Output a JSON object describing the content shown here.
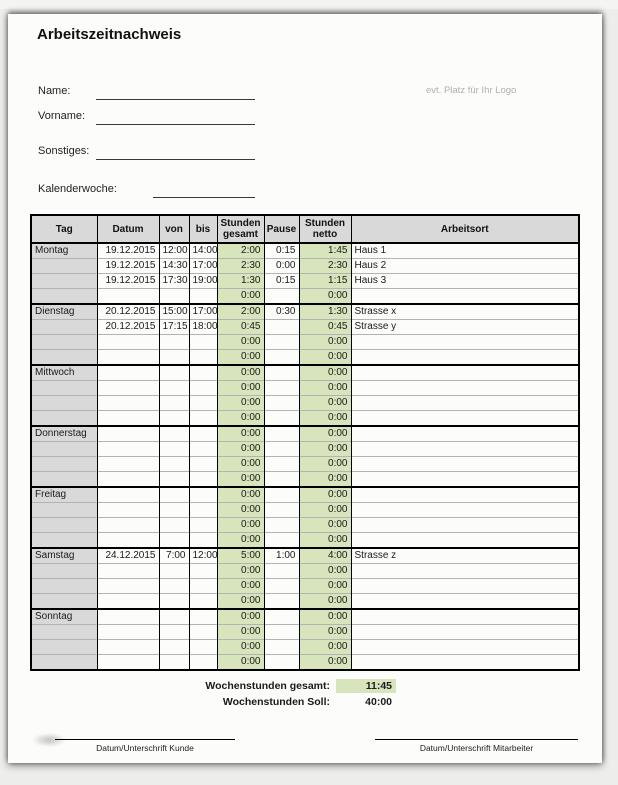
{
  "page": {
    "title": "Arbeitszeitnachweis",
    "logo_placeholder": "evt. Platz für Ihr Logo"
  },
  "colors": {
    "cell_green": "#d8e4bc",
    "header_gray": "#d9d9d9"
  },
  "form": {
    "name_label": "Name:",
    "vorname_label": "Vorname:",
    "sonstiges_label": "Sonstiges:",
    "kalenderwoche_label": "Kalenderwoche:"
  },
  "table": {
    "columns": [
      "Tag",
      "Datum",
      "von",
      "bis",
      "Stunden gesamt",
      "Pause",
      "Stunden netto",
      "Arbeitsort"
    ],
    "days": [
      {
        "name": "Montag",
        "rows": [
          {
            "datum": "19.12.2015",
            "von": "12:00",
            "bis": "14:00",
            "gesamt": "2:00",
            "pause": "0:15",
            "netto": "1:45",
            "ort": "Haus 1"
          },
          {
            "datum": "19.12.2015",
            "von": "14:30",
            "bis": "17:00",
            "gesamt": "2:30",
            "pause": "0:00",
            "netto": "2:30",
            "ort": "Haus 2"
          },
          {
            "datum": "19.12.2015",
            "von": "17:30",
            "bis": "19:00",
            "gesamt": "1:30",
            "pause": "0:15",
            "netto": "1:15",
            "ort": "Haus 3"
          },
          {
            "datum": "",
            "von": "",
            "bis": "",
            "gesamt": "0:00",
            "pause": "",
            "netto": "0:00",
            "ort": ""
          }
        ]
      },
      {
        "name": "Dienstag",
        "rows": [
          {
            "datum": "20.12.2015",
            "von": "15:00",
            "bis": "17:00",
            "gesamt": "2:00",
            "pause": "0:30",
            "netto": "1:30",
            "ort": "Strasse x"
          },
          {
            "datum": "20.12.2015",
            "von": "17:15",
            "bis": "18:00",
            "gesamt": "0:45",
            "pause": "",
            "netto": "0:45",
            "ort": "Strasse y"
          },
          {
            "datum": "",
            "von": "",
            "bis": "",
            "gesamt": "0:00",
            "pause": "",
            "netto": "0:00",
            "ort": ""
          },
          {
            "datum": "",
            "von": "",
            "bis": "",
            "gesamt": "0:00",
            "pause": "",
            "netto": "0:00",
            "ort": ""
          }
        ]
      },
      {
        "name": "Mittwoch",
        "rows": [
          {
            "datum": "",
            "von": "",
            "bis": "",
            "gesamt": "0:00",
            "pause": "",
            "netto": "0:00",
            "ort": ""
          },
          {
            "datum": "",
            "von": "",
            "bis": "",
            "gesamt": "0:00",
            "pause": "",
            "netto": "0:00",
            "ort": ""
          },
          {
            "datum": "",
            "von": "",
            "bis": "",
            "gesamt": "0:00",
            "pause": "",
            "netto": "0:00",
            "ort": ""
          },
          {
            "datum": "",
            "von": "",
            "bis": "",
            "gesamt": "0:00",
            "pause": "",
            "netto": "0:00",
            "ort": ""
          }
        ]
      },
      {
        "name": "Donnerstag",
        "rows": [
          {
            "datum": "",
            "von": "",
            "bis": "",
            "gesamt": "0:00",
            "pause": "",
            "netto": "0:00",
            "ort": ""
          },
          {
            "datum": "",
            "von": "",
            "bis": "",
            "gesamt": "0:00",
            "pause": "",
            "netto": "0:00",
            "ort": ""
          },
          {
            "datum": "",
            "von": "",
            "bis": "",
            "gesamt": "0:00",
            "pause": "",
            "netto": "0:00",
            "ort": ""
          },
          {
            "datum": "",
            "von": "",
            "bis": "",
            "gesamt": "0:00",
            "pause": "",
            "netto": "0:00",
            "ort": ""
          }
        ]
      },
      {
        "name": "Freitag",
        "rows": [
          {
            "datum": "",
            "von": "",
            "bis": "",
            "gesamt": "0:00",
            "pause": "",
            "netto": "0:00",
            "ort": ""
          },
          {
            "datum": "",
            "von": "",
            "bis": "",
            "gesamt": "0:00",
            "pause": "",
            "netto": "0:00",
            "ort": ""
          },
          {
            "datum": "",
            "von": "",
            "bis": "",
            "gesamt": "0:00",
            "pause": "",
            "netto": "0:00",
            "ort": ""
          },
          {
            "datum": "",
            "von": "",
            "bis": "",
            "gesamt": "0:00",
            "pause": "",
            "netto": "0:00",
            "ort": ""
          }
        ]
      },
      {
        "name": "Samstag",
        "rows": [
          {
            "datum": "24.12.2015",
            "von": "7:00",
            "bis": "12:00",
            "gesamt": "5:00",
            "pause": "1:00",
            "netto": "4:00",
            "ort": "Strasse z"
          },
          {
            "datum": "",
            "von": "",
            "bis": "",
            "gesamt": "0:00",
            "pause": "",
            "netto": "0:00",
            "ort": ""
          },
          {
            "datum": "",
            "von": "",
            "bis": "",
            "gesamt": "0:00",
            "pause": "",
            "netto": "0:00",
            "ort": ""
          },
          {
            "datum": "",
            "von": "",
            "bis": "",
            "gesamt": "0:00",
            "pause": "",
            "netto": "0:00",
            "ort": ""
          }
        ]
      },
      {
        "name": "Sonntag",
        "rows": [
          {
            "datum": "",
            "von": "",
            "bis": "",
            "gesamt": "0:00",
            "pause": "",
            "netto": "0:00",
            "ort": ""
          },
          {
            "datum": "",
            "von": "",
            "bis": "",
            "gesamt": "0:00",
            "pause": "",
            "netto": "0:00",
            "ort": ""
          },
          {
            "datum": "",
            "von": "",
            "bis": "",
            "gesamt": "0:00",
            "pause": "",
            "netto": "0:00",
            "ort": ""
          },
          {
            "datum": "",
            "von": "",
            "bis": "",
            "gesamt": "0:00",
            "pause": "",
            "netto": "0:00",
            "ort": ""
          }
        ]
      }
    ]
  },
  "summary": {
    "total_label": "Wochenstunden gesamt:",
    "total_value": "11:45",
    "target_label": "Wochenstunden Soll:",
    "target_value": "40:00"
  },
  "footer": {
    "customer_signature_label": "Datum/Unterschrift Kunde",
    "employee_signature_label": "Datum/Unterschrift Mitarbeiter"
  }
}
